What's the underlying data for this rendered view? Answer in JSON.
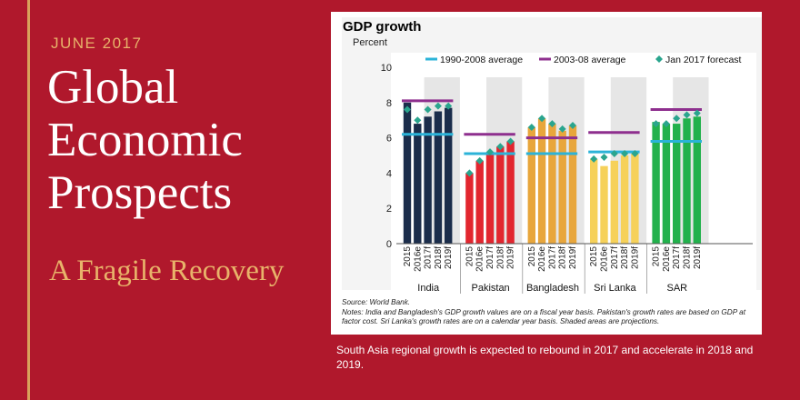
{
  "cover": {
    "date": "JUNE 2017",
    "title_lines": [
      "Global",
      "Economic",
      "Prospects"
    ],
    "subtitle": "A Fragile Recovery"
  },
  "caption": "South Asia regional growth is expected to rebound in 2017 and accelerate in 2018 and 2019.",
  "colors": {
    "background": "#b0182c",
    "accent": "#e8b36a",
    "avg_1990_2008": "#2bb3d8",
    "avg_2003_08": "#8e2f8e",
    "forecast_marker": "#2aa58e",
    "shade": "#e6e6e6"
  },
  "chart_data": {
    "type": "bar",
    "title": "GDP growth",
    "ylabel": "Percent",
    "ylim": [
      0,
      10
    ],
    "yticks": [
      0,
      2,
      4,
      6,
      8,
      10
    ],
    "legend": {
      "placement": "top",
      "entries": [
        "1990-2008 average",
        "2003-08 average",
        "Jan 2017 forecast"
      ]
    },
    "years": [
      "2015",
      "2016e",
      "2017f",
      "2018f",
      "2019f"
    ],
    "shaded_years": [
      "2017f",
      "2018f",
      "2019f"
    ],
    "groups": [
      {
        "name": "India",
        "color": "#1b2d4b",
        "values": [
          8.0,
          6.8,
          7.2,
          7.5,
          7.7
        ],
        "forecast": [
          7.6,
          7.0,
          7.6,
          7.8,
          7.8
        ],
        "avg_1990_2008": 6.2,
        "avg_2003_08": 8.1
      },
      {
        "name": "Pakistan",
        "color": "#e2262f",
        "values": [
          4.0,
          4.7,
          5.2,
          5.5,
          5.8
        ],
        "forecast": [
          4.0,
          4.7,
          5.2,
          5.5,
          5.8
        ],
        "avg_1990_2008": 5.1,
        "avg_2003_08": 6.2
      },
      {
        "name": "Bangladesh",
        "color": "#e8a63c",
        "values": [
          6.6,
          7.1,
          6.8,
          6.4,
          6.7
        ],
        "forecast": [
          6.6,
          7.1,
          6.8,
          6.5,
          6.7
        ],
        "avg_1990_2008": 5.1,
        "avg_2003_08": 6.0
      },
      {
        "name": "Sri Lanka",
        "color": "#f6d15a",
        "values": [
          4.8,
          4.4,
          4.7,
          5.0,
          5.1
        ],
        "forecast": [
          4.8,
          4.9,
          5.1,
          5.1,
          5.1
        ],
        "avg_1990_2008": 5.2,
        "avg_2003_08": 6.3
      },
      {
        "name": "SAR",
        "color": "#22b14c",
        "values": [
          6.9,
          6.8,
          6.8,
          7.1,
          7.2
        ],
        "forecast": [
          6.8,
          6.8,
          7.1,
          7.3,
          7.4
        ],
        "avg_1990_2008": 5.8,
        "avg_2003_08": 7.6
      }
    ],
    "source": "Source: World Bank.",
    "notes": "Notes: India and Bangladesh's GDP growth values are on a fiscal year basis. Pakistan's growth rates are based on GDP at factor cost. Sri Lanka's growth rates are on a calendar year basis. Shaded areas are projections."
  }
}
